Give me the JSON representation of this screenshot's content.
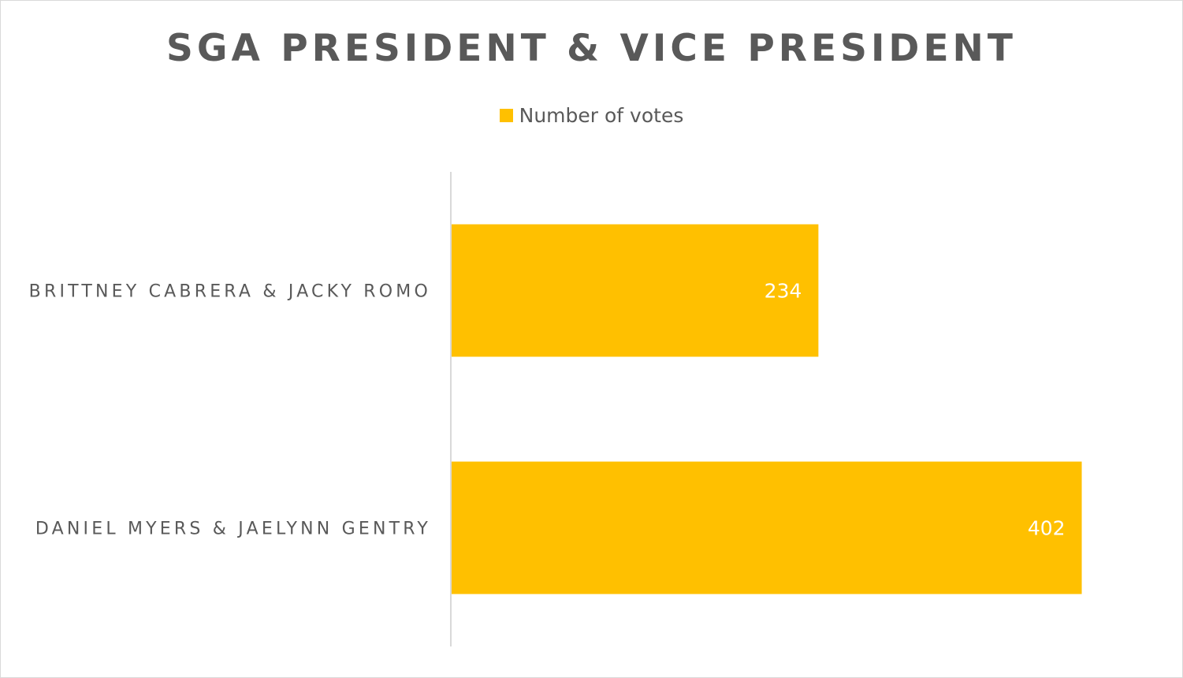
{
  "chart_data": {
    "type": "bar",
    "orientation": "horizontal",
    "title": "SGA PRESIDENT & VICE PRESIDENT",
    "categories": [
      "BRITTNEY CABRERA & JACKY ROMO",
      "DANIEL MYERS & JAELYNN GENTRY"
    ],
    "series": [
      {
        "name": "Number of votes",
        "values": [
          234,
          402
        ],
        "color": "#FFC000"
      }
    ],
    "data_labels": [
      "234",
      "402"
    ],
    "xlim": [
      0,
      450
    ],
    "grid": false,
    "legend_position": "top"
  }
}
